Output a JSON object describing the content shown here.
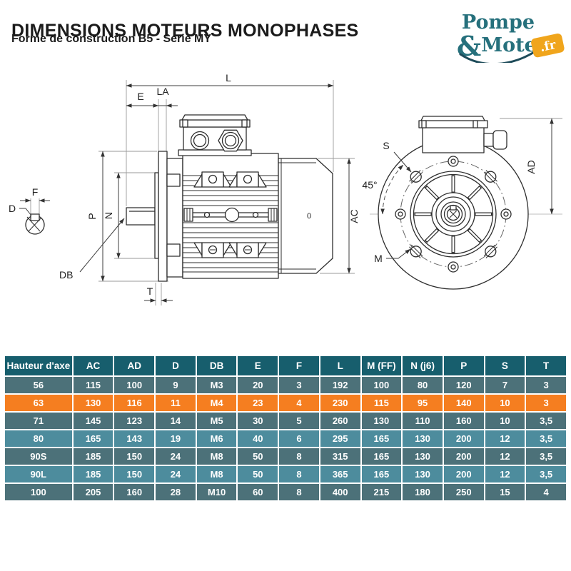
{
  "header": {
    "title": "DIMENSIONS MOTEURS MONOPHASES",
    "subtitle": "Forme de construction B5 - Série MY"
  },
  "logo": {
    "word1": "Pompe",
    "amp": "&",
    "word2": "Moteur",
    "tld": ".fr"
  },
  "drawing": {
    "side": {
      "l": "L",
      "e": "E",
      "la": "LA",
      "p": "P",
      "n": "N",
      "db": "DB",
      "t": "T",
      "ac": "AC",
      "o_mark": "0"
    },
    "detail": {
      "f": "F",
      "d": "D"
    },
    "front": {
      "s": "S",
      "angle": "45°",
      "m": "M",
      "ad": "AD"
    }
  },
  "table": {
    "columns": [
      "Hauteur d'axe",
      "AC",
      "AD",
      "D",
      "DB",
      "E",
      "F",
      "L",
      "M (FF)",
      "N (j6)",
      "P",
      "S",
      "T"
    ],
    "rows": [
      {
        "label": "56",
        "values": [
          "115",
          "100",
          "9",
          "M3",
          "20",
          "3",
          "192",
          "100",
          "80",
          "120",
          "7",
          "3"
        ],
        "style": "dark"
      },
      {
        "label": "63",
        "values": [
          "130",
          "116",
          "11",
          "M4",
          "23",
          "4",
          "230",
          "115",
          "95",
          "140",
          "10",
          "3"
        ],
        "style": "highlight"
      },
      {
        "label": "71",
        "values": [
          "145",
          "123",
          "14",
          "M5",
          "30",
          "5",
          "260",
          "130",
          "110",
          "160",
          "10",
          "3,5"
        ],
        "style": "dark"
      },
      {
        "label": "80",
        "values": [
          "165",
          "143",
          "19",
          "M6",
          "40",
          "6",
          "295",
          "165",
          "130",
          "200",
          "12",
          "3,5"
        ],
        "style": "light"
      },
      {
        "label": "90S",
        "values": [
          "185",
          "150",
          "24",
          "M8",
          "50",
          "8",
          "315",
          "165",
          "130",
          "200",
          "12",
          "3,5"
        ],
        "style": "dark"
      },
      {
        "label": "90L",
        "values": [
          "185",
          "150",
          "24",
          "M8",
          "50",
          "8",
          "365",
          "165",
          "130",
          "200",
          "12",
          "3,5"
        ],
        "style": "light"
      },
      {
        "label": "100",
        "values": [
          "205",
          "160",
          "28",
          "M10",
          "60",
          "8",
          "400",
          "215",
          "180",
          "250",
          "15",
          "4"
        ],
        "style": "dark"
      }
    ]
  },
  "colors": {
    "header_bg": "#175E6D",
    "row_dark": "#4C7179",
    "row_light": "#4D8C9D",
    "row_highlight": "#F57E20",
    "table_text": "#FFFFFF",
    "logo_teal": "#26707C",
    "logo_swoosh": "#1D4B59",
    "logo_orange": "#F0A51C"
  }
}
